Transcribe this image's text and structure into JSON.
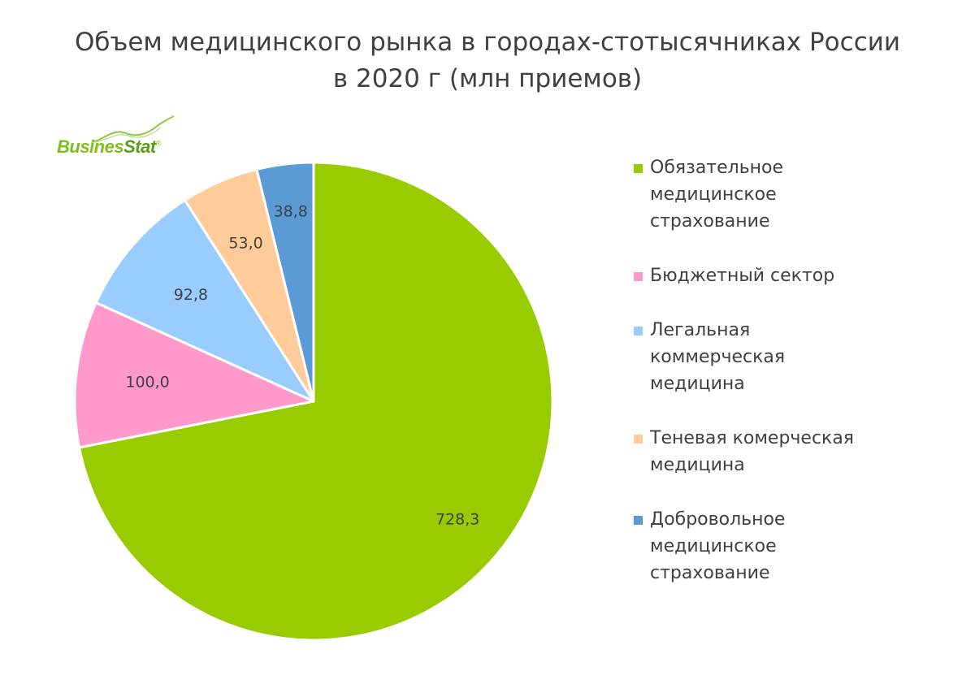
{
  "chart_data": {
    "type": "pie",
    "title_lines": [
      "Объем медицинского рынка в городах-стотысячниках России",
      "в 2020 г (млн приемов)"
    ],
    "categories": [
      "Обязательное медицинское страхование",
      "Бюджетный сектор",
      "Легальная коммерческая медицина",
      "Теневая комерческая медицина",
      "Добровольное медицинское страхование"
    ],
    "values": [
      728.3,
      100.0,
      92.8,
      53.0,
      38.8
    ],
    "value_labels": [
      "728,3",
      "100,0",
      "92,8",
      "53,0",
      "38,8"
    ],
    "colors": [
      "#99cc00",
      "#ff99cc",
      "#99ccff",
      "#ffcc99",
      "#5b9bd5"
    ],
    "legend_placement": "right",
    "start_angle": "12 o'clock",
    "direction": "clockwise"
  },
  "legend": {
    "items": [
      {
        "lines": [
          "Обязательное",
          "медицинское",
          "страхование"
        ],
        "color": "#99cc00"
      },
      {
        "lines": [
          "Бюджетный сектор"
        ],
        "color": "#ff99cc"
      },
      {
        "lines": [
          "Легальная",
          "коммерческая",
          "медицина"
        ],
        "color": "#99ccff"
      },
      {
        "lines": [
          "Теневая комерческая",
          "медицина"
        ],
        "color": "#ffcc99"
      },
      {
        "lines": [
          "Добровольное",
          "медицинское",
          "страхование"
        ],
        "color": "#5b9bd5"
      }
    ]
  },
  "logo": {
    "part1": "Busines",
    "part2": "Stat",
    "mark": "®",
    "colors": {
      "main": "#7cbf1e",
      "dark": "#5a9e14"
    }
  }
}
